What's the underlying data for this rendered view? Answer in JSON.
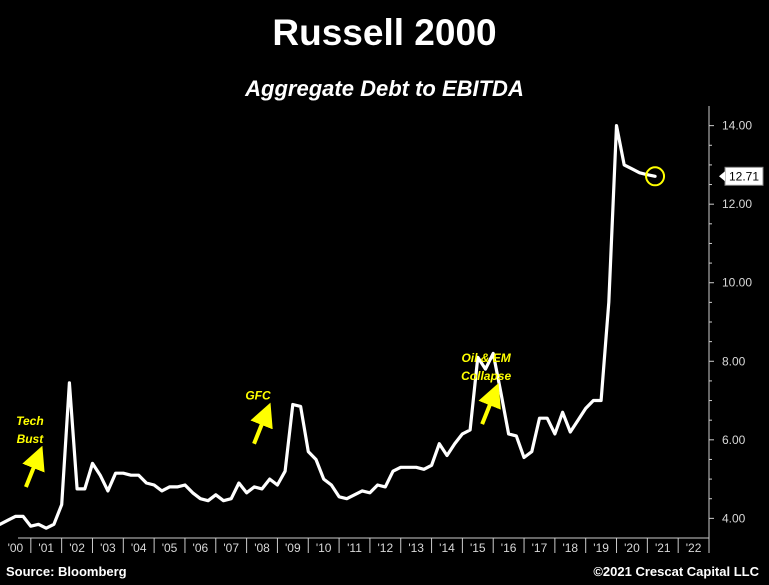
{
  "header": {
    "title": "Russell 2000",
    "subtitle": "Aggregate Debt to EBITDA"
  },
  "footer": {
    "source": "Source: Bloomberg",
    "copyright": "©2021 Crescat Capital LLC"
  },
  "colors": {
    "background": "#000000",
    "line": "#ffffff",
    "annotation": "#ffff00",
    "axis": "#cccccc"
  },
  "chart_data": {
    "type": "line",
    "title": "Russell 2000",
    "subtitle": "Aggregate Debt to EBITDA",
    "xlabel": "",
    "ylabel": "",
    "xlim": [
      2000.0,
      2023.0
    ],
    "ylim": [
      3.5,
      14.5
    ],
    "y_ticks": [
      4,
      6,
      8,
      10,
      12,
      14
    ],
    "y_tick_labels": [
      "4.00",
      "6.00",
      "8.00",
      "10.00",
      "12.00",
      "14.00"
    ],
    "x_ticks": [
      2000.5,
      2001.5,
      2002.5,
      2003.5,
      2004.5,
      2005.5,
      2006.5,
      2007.5,
      2008.5,
      2009.5,
      2010.5,
      2011.5,
      2012.5,
      2013.5,
      2014.5,
      2015.5,
      2016.5,
      2017.5,
      2018.5,
      2019.5,
      2020.5,
      2021.5,
      2022.5
    ],
    "x_tick_labels": [
      "'00",
      "'01",
      "'02",
      "'03",
      "'04",
      "'05",
      "'06",
      "'07",
      "'08",
      "'09",
      "'10",
      "'11",
      "'12",
      "'13",
      "'14",
      "'15",
      "'16",
      "'17",
      "'18",
      "'19",
      "'20",
      "'21",
      "'22"
    ],
    "grid": false,
    "series": [
      {
        "name": "",
        "x": [
          2000.0,
          2000.25,
          2000.5,
          2000.75,
          2001.0,
          2001.25,
          2001.5,
          2001.75,
          2002.0,
          2002.25,
          2002.5,
          2002.75,
          2003.0,
          2003.25,
          2003.5,
          2003.75,
          2004.0,
          2004.25,
          2004.5,
          2004.75,
          2005.0,
          2005.25,
          2005.5,
          2005.75,
          2006.0,
          2006.25,
          2006.5,
          2006.75,
          2007.0,
          2007.25,
          2007.5,
          2007.75,
          2008.0,
          2008.25,
          2008.5,
          2008.75,
          2009.0,
          2009.25,
          2009.5,
          2009.75,
          2010.0,
          2010.25,
          2010.5,
          2010.75,
          2011.0,
          2011.25,
          2011.5,
          2011.75,
          2012.0,
          2012.25,
          2012.5,
          2012.75,
          2013.0,
          2013.25,
          2013.5,
          2013.75,
          2014.0,
          2014.25,
          2014.5,
          2014.75,
          2015.0,
          2015.25,
          2015.5,
          2015.75,
          2016.0,
          2016.25,
          2016.5,
          2016.75,
          2017.0,
          2017.25,
          2017.5,
          2017.75,
          2018.0,
          2018.25,
          2018.5,
          2018.75,
          2019.0,
          2019.25,
          2019.5,
          2019.75,
          2020.0,
          2020.25,
          2020.5,
          2020.75,
          2021.0,
          2021.25
        ],
        "values": [
          3.85,
          3.95,
          4.05,
          4.05,
          3.8,
          3.85,
          3.75,
          3.85,
          4.35,
          7.45,
          4.75,
          4.75,
          5.4,
          5.1,
          4.7,
          5.15,
          5.15,
          5.1,
          5.1,
          4.9,
          4.85,
          4.7,
          4.8,
          4.8,
          4.85,
          4.65,
          4.5,
          4.45,
          4.6,
          4.45,
          4.5,
          4.9,
          4.65,
          4.8,
          4.75,
          5.0,
          4.85,
          5.2,
          6.9,
          6.85,
          5.7,
          5.5,
          5.0,
          4.85,
          4.55,
          4.5,
          4.6,
          4.7,
          4.65,
          4.85,
          4.8,
          5.2,
          5.3,
          5.3,
          5.3,
          5.25,
          5.35,
          5.9,
          5.6,
          5.9,
          6.15,
          6.25,
          8.1,
          7.8,
          8.2,
          7.2,
          6.15,
          6.1,
          5.55,
          5.7,
          6.55,
          6.55,
          6.15,
          6.7,
          6.2,
          6.5,
          6.8,
          7.0,
          7.0,
          9.5,
          14.0,
          13.0,
          12.9,
          12.8,
          12.75,
          12.71
        ]
      }
    ],
    "last_value_label": "12.71",
    "annotations": [
      {
        "text_lines": [
          "Tech",
          "Bust"
        ],
        "x": 2001.1,
        "y": 4.8
      },
      {
        "text_lines": [
          "GFC"
        ],
        "x": 2008.5,
        "y": 5.9
      },
      {
        "text_lines": [
          "Oil & EM",
          "Collapse"
        ],
        "x": 2015.9,
        "y": 6.4
      }
    ],
    "highlight": {
      "x": 2021.25,
      "y": 12.71
    }
  }
}
